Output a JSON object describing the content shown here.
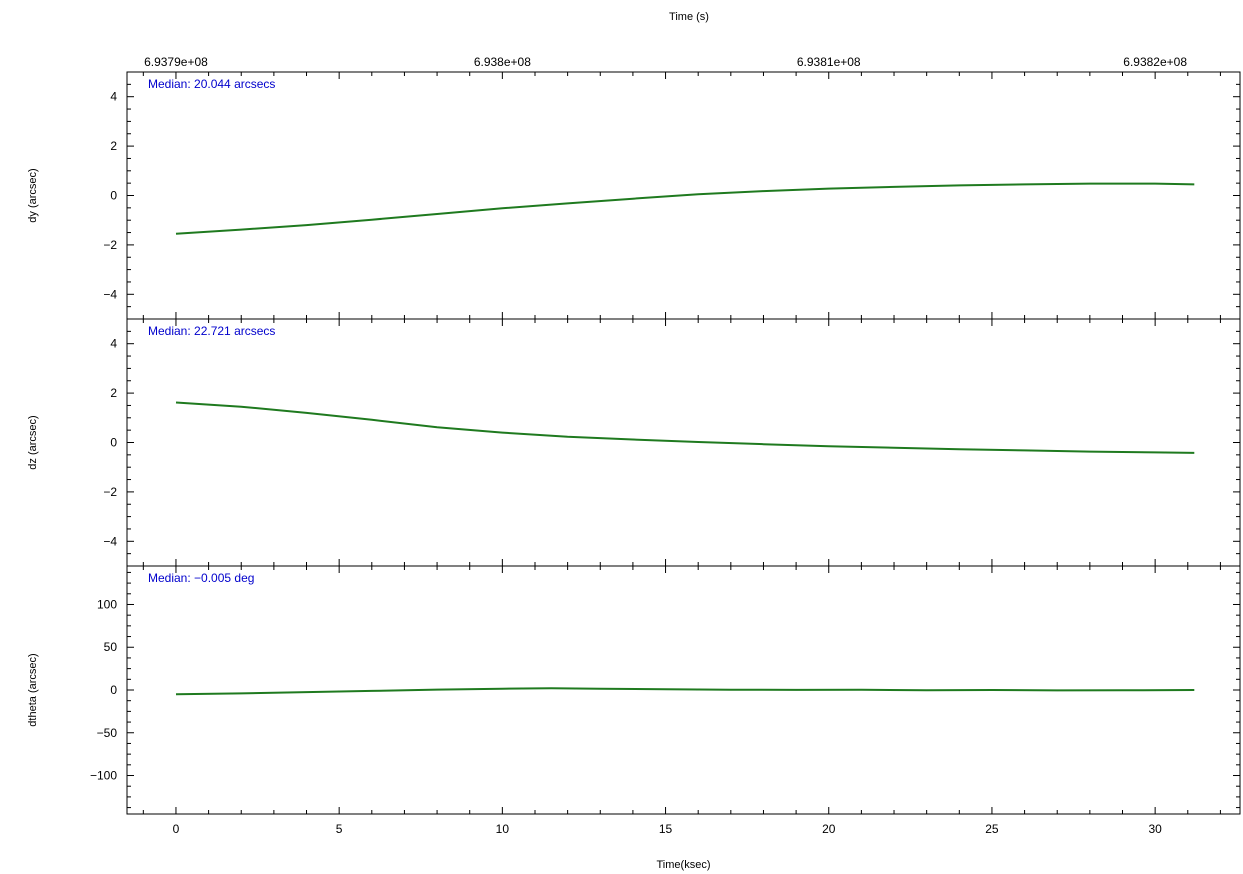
{
  "top_axis": {
    "label": "Time (s)",
    "ticks": [
      {
        "label": "6.9379e+08",
        "t": 0.0
      },
      {
        "label": "6.938e+08",
        "t": 10.0
      },
      {
        "label": "6.9381e+08",
        "t": 20.0
      },
      {
        "label": "6.9382e+08",
        "t": 30.0
      }
    ]
  },
  "colors": {
    "line": "#1f7a1f",
    "median": "#0000cc",
    "axis": "#000000"
  },
  "chart_data": [
    {
      "type": "line",
      "panel": "dy",
      "ylabel": "dy (arcsec)",
      "xlabel": "",
      "median_label": "Median: 20.044 arcsecs",
      "xlim": [
        -1.5,
        32.6
      ],
      "ylim": [
        -5,
        5
      ],
      "x_ticks": [
        0,
        5,
        10,
        15,
        20,
        25,
        30
      ],
      "y_ticks": [
        -4,
        -2,
        0,
        2,
        4
      ],
      "y_tick_labels": [
        "−4",
        "−2",
        "0",
        "2",
        "4"
      ],
      "show_x_tick_labels": false,
      "series": [
        {
          "x": [
            0,
            2,
            4,
            6,
            8,
            10,
            12,
            14,
            16,
            18,
            20,
            22,
            24,
            26,
            28,
            30,
            31.2
          ],
          "y": [
            -1.55,
            -1.38,
            -1.2,
            -0.98,
            -0.75,
            -0.52,
            -0.32,
            -0.13,
            0.05,
            0.18,
            0.28,
            0.35,
            0.41,
            0.45,
            0.48,
            0.48,
            0.45
          ]
        }
      ]
    },
    {
      "type": "line",
      "panel": "dz",
      "ylabel": "dz (arcsec)",
      "xlabel": "",
      "median_label": "Median: 22.721 arcsecs",
      "xlim": [
        -1.5,
        32.6
      ],
      "ylim": [
        -5,
        5
      ],
      "x_ticks": [
        0,
        5,
        10,
        15,
        20,
        25,
        30
      ],
      "y_ticks": [
        -4,
        -2,
        0,
        2,
        4
      ],
      "y_tick_labels": [
        "−4",
        "−2",
        "0",
        "2",
        "4"
      ],
      "show_x_tick_labels": false,
      "series": [
        {
          "x": [
            0,
            2,
            4,
            6,
            8,
            10,
            12,
            14,
            16,
            18,
            20,
            22,
            24,
            26,
            28,
            30,
            31.2
          ],
          "y": [
            1.62,
            1.45,
            1.2,
            0.92,
            0.62,
            0.4,
            0.23,
            0.12,
            0.02,
            -0.07,
            -0.15,
            -0.21,
            -0.27,
            -0.32,
            -0.37,
            -0.4,
            -0.42
          ]
        }
      ]
    },
    {
      "type": "line",
      "panel": "dtheta",
      "ylabel": "dtheta (arcsec)",
      "xlabel": "Time(ksec)",
      "median_label": "Median: −0.005 deg",
      "xlim": [
        -1.5,
        32.6
      ],
      "ylim": [
        -145,
        145
      ],
      "x_ticks": [
        0,
        5,
        10,
        15,
        20,
        25,
        30
      ],
      "y_ticks": [
        -100,
        -50,
        0,
        50,
        100
      ],
      "y_tick_labels": [
        "−100",
        "−50",
        "0",
        "50",
        "100"
      ],
      "show_x_tick_labels": true,
      "series": [
        {
          "x": [
            0,
            2,
            4,
            6,
            8,
            10,
            11.5,
            13,
            15,
            17,
            19,
            21,
            23,
            25,
            27,
            29,
            31.2
          ],
          "y": [
            -5,
            -4,
            -2.5,
            -1,
            0.5,
            1.5,
            2,
            1.5,
            0.8,
            0.3,
            0.1,
            0.2,
            -0.2,
            0,
            -0.5,
            -0.3,
            0
          ]
        }
      ]
    }
  ]
}
